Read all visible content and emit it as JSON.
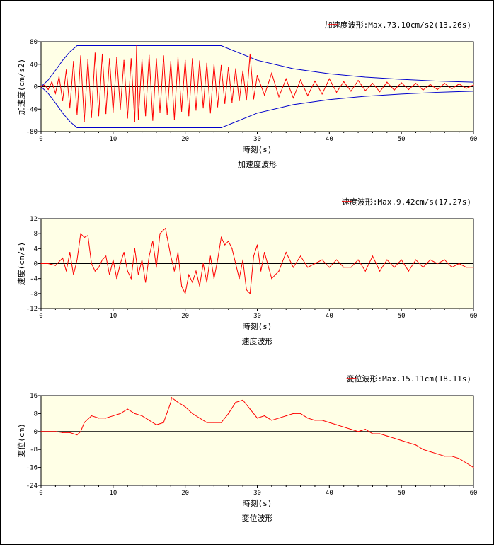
{
  "chart_data": [
    {
      "type": "line",
      "title": "加速度波形",
      "xlabel": "時刻(s)",
      "ylabel": "加速度(cm/s2)",
      "legend": "加速度波形:Max.73.10cm/s2(13.26s)",
      "legend_position": "top-right",
      "xlim": [
        0,
        60
      ],
      "ylim": [
        -80,
        80
      ],
      "xticks": [
        "0",
        "10",
        "20",
        "30",
        "40",
        "50",
        "60"
      ],
      "yticks": [
        "80",
        "40",
        "0",
        "-40",
        "-80"
      ],
      "envelope": {
        "x": [
          0,
          1,
          2,
          3,
          4,
          5,
          25,
          30,
          35,
          40,
          45,
          50,
          55,
          60
        ],
        "y": [
          0,
          12,
          29,
          47,
          62,
          73,
          73,
          47,
          32,
          23,
          17,
          13,
          10,
          8
        ]
      },
      "series": [
        {
          "x": [
            0,
            0.5,
            1,
            1.5,
            2,
            2.5,
            3,
            3.5,
            4,
            4.5,
            5,
            5.5,
            6,
            6.5,
            7,
            7.5,
            8,
            8.5,
            9,
            9.5,
            10,
            10.5,
            11,
            11.5,
            12,
            12.5,
            13,
            13.26,
            13.5,
            14,
            14.5,
            15,
            15.5,
            16,
            16.5,
            17,
            17.5,
            18,
            18.5,
            19,
            19.5,
            20,
            20.5,
            21,
            21.5,
            22,
            22.5,
            23,
            23.5,
            24,
            24.5,
            25,
            25.5,
            26,
            26.5,
            27,
            27.5,
            28,
            28.5,
            29,
            29.5,
            30,
            31,
            32,
            33,
            34,
            35,
            36,
            37,
            38,
            39,
            40,
            41,
            42,
            43,
            44,
            45,
            46,
            47,
            48,
            49,
            50,
            51,
            52,
            53,
            54,
            55,
            56,
            57,
            58,
            59,
            60
          ],
          "y": [
            0,
            3,
            -5,
            9,
            -12,
            18,
            -25,
            30,
            -38,
            45,
            -50,
            55,
            -62,
            48,
            -55,
            60,
            -52,
            58,
            -48,
            50,
            -45,
            52,
            -40,
            47,
            -56,
            50,
            -62,
            73,
            -58,
            48,
            -52,
            56,
            -60,
            50,
            -46,
            55,
            -50,
            45,
            -58,
            52,
            -44,
            47,
            -52,
            50,
            -42,
            46,
            -38,
            42,
            -47,
            40,
            -36,
            38,
            -30,
            35,
            -28,
            32,
            -25,
            28,
            -24,
            58,
            -22,
            20,
            -15,
            24,
            -18,
            14,
            -20,
            12,
            -16,
            10,
            -13,
            14,
            -10,
            9,
            -8,
            11,
            -7,
            6,
            -9,
            8,
            -6,
            7,
            -5,
            6,
            -6,
            4,
            -5,
            6,
            -4,
            5,
            -3,
            3
          ]
        }
      ]
    },
    {
      "type": "line",
      "title": "速度波形",
      "xlabel": "時刻(s)",
      "ylabel": "速度(cm/s)",
      "legend": "速度波形:Max.9.42cm/s(17.27s)",
      "legend_position": "top-right",
      "xlim": [
        0,
        60
      ],
      "ylim": [
        -12,
        12
      ],
      "xticks": [
        "0",
        "10",
        "20",
        "30",
        "40",
        "50",
        "60"
      ],
      "yticks": [
        "12",
        "8",
        "4",
        "0",
        "-4",
        "-8",
        "-12"
      ],
      "series": [
        {
          "x": [
            0,
            1,
            2,
            3,
            3.5,
            4,
            4.5,
            5,
            5.5,
            6,
            6.5,
            7,
            7.5,
            8,
            8.5,
            9,
            9.5,
            10,
            10.5,
            11,
            11.5,
            12,
            12.5,
            13,
            13.5,
            14,
            14.5,
            15,
            15.5,
            16,
            16.5,
            17,
            17.27,
            17.5,
            18,
            18.5,
            19,
            19.5,
            20,
            20.5,
            21,
            21.5,
            22,
            22.5,
            23,
            23.5,
            24,
            24.5,
            25,
            25.5,
            26,
            26.5,
            27,
            27.5,
            28,
            28.5,
            29,
            29.5,
            30,
            30.5,
            31,
            32,
            33,
            34,
            35,
            36,
            37,
            38,
            39,
            40,
            41,
            42,
            43,
            44,
            45,
            46,
            47,
            48,
            49,
            50,
            51,
            52,
            53,
            54,
            55,
            56,
            57,
            58,
            59,
            60
          ],
          "y": [
            0,
            0,
            -0.5,
            1.5,
            -2,
            3,
            -3,
            1,
            8,
            7,
            7.5,
            0,
            -2,
            -1,
            1,
            2,
            -3,
            1,
            -4,
            0,
            3,
            -2,
            -4,
            4,
            -3,
            1,
            -5,
            2,
            6,
            -1,
            8,
            9,
            9.42,
            7,
            2,
            -2,
            3,
            -6,
            -8,
            -3,
            -5,
            -2,
            -6,
            0,
            -5,
            2,
            -4,
            1,
            7,
            5,
            6,
            4,
            0,
            -4,
            1,
            -7,
            -8,
            2,
            5,
            -2,
            3,
            -4,
            -2,
            3,
            -1,
            2,
            -1,
            0,
            1,
            -1,
            1,
            -1,
            -1,
            1,
            -2,
            2,
            -2,
            1,
            -1,
            1,
            -2,
            1,
            -1,
            1,
            0,
            1,
            -1,
            0,
            -1,
            -1
          ]
        }
      ]
    },
    {
      "type": "line",
      "title": "変位波形",
      "xlabel": "時刻(s)",
      "ylabel": "変位(cm)",
      "legend": "変位波形:Max.15.11cm(18.11s)",
      "legend_position": "top-right",
      "xlim": [
        0,
        60
      ],
      "ylim": [
        -24,
        16
      ],
      "xticks": [
        "0",
        "10",
        "20",
        "30",
        "40",
        "50",
        "60"
      ],
      "yticks": [
        "16",
        "8",
        "0",
        "-8",
        "-16",
        "-24"
      ],
      "series": [
        {
          "x": [
            0,
            2,
            3,
            4,
            5,
            5.5,
            6,
            7,
            8,
            9,
            10,
            11,
            12,
            13,
            14,
            15,
            16,
            17,
            18,
            18.11,
            19,
            20,
            21,
            22,
            23,
            24,
            25,
            26,
            27,
            28,
            29,
            30,
            31,
            32,
            33,
            34,
            35,
            36,
            37,
            38,
            39,
            40,
            41,
            42,
            43,
            44,
            45,
            46,
            47,
            48,
            49,
            50,
            51,
            52,
            53,
            54,
            55,
            56,
            57,
            58,
            59,
            60
          ],
          "y": [
            0,
            0,
            -0.5,
            -0.5,
            -1.5,
            0,
            4,
            7,
            6,
            6,
            7,
            8,
            10,
            8,
            7,
            5,
            3,
            4,
            13,
            15.11,
            13,
            11,
            8,
            6,
            4,
            4,
            4,
            8,
            13,
            14,
            10,
            6,
            7,
            5,
            6,
            7,
            8,
            8,
            6,
            5,
            5,
            4,
            3,
            2,
            1,
            0,
            1,
            -1,
            -1,
            -2,
            -3,
            -4,
            -5,
            -6,
            -8,
            -9,
            -10,
            -11,
            -11,
            -12,
            -14,
            -16
          ]
        }
      ]
    }
  ]
}
